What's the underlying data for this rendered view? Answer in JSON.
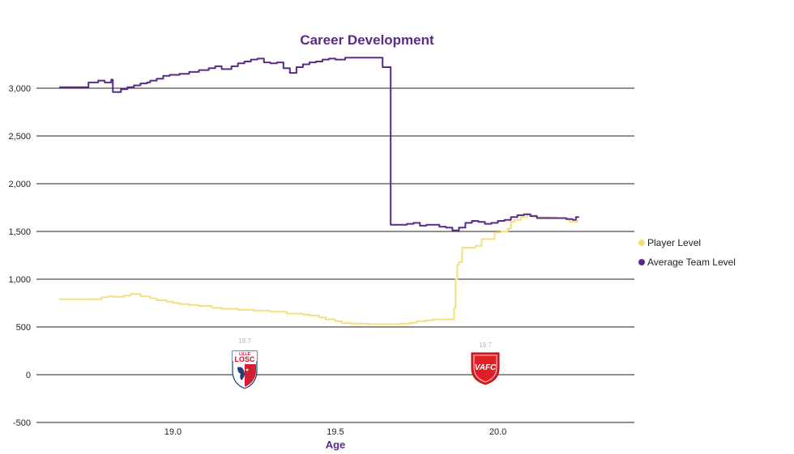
{
  "chart_data": {
    "type": "line",
    "title": "Career Development",
    "xlabel": "Age",
    "ylabel": "",
    "xlim": [
      18.58,
      20.42
    ],
    "ylim": [
      -500,
      3500
    ],
    "yticks": [
      3000,
      2500,
      2000,
      1500,
      1000,
      500,
      0,
      -500
    ],
    "ytick_labels": [
      "3,000",
      "2,500",
      "2,000",
      "1,500",
      "1,000",
      "500",
      "0",
      "-500"
    ],
    "xticks": [
      19.0,
      19.5,
      20.0
    ],
    "xtick_labels": [
      "19.0",
      "19.5",
      "20.0"
    ],
    "grid": "horizontal",
    "legend_position": "right",
    "series": [
      {
        "name": "Player Level",
        "color": "#f3e07c",
        "points": [
          [
            18.65,
            790
          ],
          [
            18.73,
            790
          ],
          [
            18.78,
            810
          ],
          [
            18.8,
            820
          ],
          [
            18.82,
            815
          ],
          [
            18.85,
            830
          ],
          [
            18.87,
            845
          ],
          [
            18.9,
            820
          ],
          [
            18.93,
            800
          ],
          [
            18.95,
            780
          ],
          [
            18.98,
            765
          ],
          [
            19.0,
            750
          ],
          [
            19.02,
            740
          ],
          [
            19.05,
            730
          ],
          [
            19.08,
            720
          ],
          [
            19.12,
            700
          ],
          [
            19.15,
            690
          ],
          [
            19.2,
            680
          ],
          [
            19.25,
            670
          ],
          [
            19.3,
            660
          ],
          [
            19.35,
            640
          ],
          [
            19.4,
            630
          ],
          [
            19.42,
            620
          ],
          [
            19.45,
            600
          ],
          [
            19.47,
            580
          ],
          [
            19.5,
            560
          ],
          [
            19.52,
            540
          ],
          [
            19.55,
            535
          ],
          [
            19.6,
            530
          ],
          [
            19.65,
            530
          ],
          [
            19.7,
            535
          ],
          [
            19.73,
            545
          ],
          [
            19.75,
            560
          ],
          [
            19.78,
            570
          ],
          [
            19.8,
            580
          ],
          [
            19.85,
            580
          ],
          [
            19.865,
            700
          ],
          [
            19.87,
            1000
          ],
          [
            19.875,
            1150
          ],
          [
            19.88,
            1180
          ],
          [
            19.89,
            1330
          ],
          [
            19.93,
            1350
          ],
          [
            19.95,
            1420
          ],
          [
            19.99,
            1490
          ],
          [
            20.01,
            1500
          ],
          [
            20.03,
            1530
          ],
          [
            20.04,
            1600
          ],
          [
            20.05,
            1620
          ],
          [
            20.07,
            1650
          ],
          [
            20.09,
            1670
          ],
          [
            20.12,
            1650
          ],
          [
            20.18,
            1640
          ],
          [
            20.22,
            1600
          ],
          [
            20.245,
            1620
          ]
        ]
      },
      {
        "name": "Average Team Level",
        "color": "#5b2a86",
        "points": [
          [
            18.65,
            3010
          ],
          [
            18.73,
            3010
          ],
          [
            18.74,
            3060
          ],
          [
            18.77,
            3080
          ],
          [
            18.79,
            3060
          ],
          [
            18.81,
            3090
          ],
          [
            18.815,
            2960
          ],
          [
            18.84,
            2990
          ],
          [
            18.86,
            3010
          ],
          [
            18.88,
            3030
          ],
          [
            18.9,
            3050
          ],
          [
            18.92,
            3060
          ],
          [
            18.93,
            3080
          ],
          [
            18.95,
            3100
          ],
          [
            18.97,
            3130
          ],
          [
            18.99,
            3140
          ],
          [
            19.02,
            3150
          ],
          [
            19.05,
            3170
          ],
          [
            19.08,
            3190
          ],
          [
            19.11,
            3210
          ],
          [
            19.13,
            3230
          ],
          [
            19.15,
            3200
          ],
          [
            19.18,
            3230
          ],
          [
            19.2,
            3260
          ],
          [
            19.22,
            3280
          ],
          [
            19.24,
            3300
          ],
          [
            19.26,
            3310
          ],
          [
            19.28,
            3270
          ],
          [
            19.3,
            3260
          ],
          [
            19.32,
            3270
          ],
          [
            19.34,
            3210
          ],
          [
            19.36,
            3160
          ],
          [
            19.38,
            3220
          ],
          [
            19.4,
            3250
          ],
          [
            19.42,
            3270
          ],
          [
            19.44,
            3280
          ],
          [
            19.46,
            3300
          ],
          [
            19.48,
            3310
          ],
          [
            19.5,
            3300
          ],
          [
            19.53,
            3320
          ],
          [
            19.57,
            3320
          ],
          [
            19.6,
            3320
          ],
          [
            19.645,
            3320
          ],
          [
            19.645,
            3220
          ],
          [
            19.665,
            3220
          ],
          [
            19.67,
            1570
          ],
          [
            19.7,
            1570
          ],
          [
            19.72,
            1580
          ],
          [
            19.74,
            1590
          ],
          [
            19.76,
            1560
          ],
          [
            19.78,
            1570
          ],
          [
            19.8,
            1570
          ],
          [
            19.82,
            1550
          ],
          [
            19.84,
            1540
          ],
          [
            19.86,
            1510
          ],
          [
            19.88,
            1540
          ],
          [
            19.9,
            1590
          ],
          [
            19.92,
            1610
          ],
          [
            19.94,
            1600
          ],
          [
            19.96,
            1580
          ],
          [
            19.98,
            1590
          ],
          [
            20.0,
            1610
          ],
          [
            20.02,
            1620
          ],
          [
            20.04,
            1650
          ],
          [
            20.06,
            1670
          ],
          [
            20.08,
            1680
          ],
          [
            20.1,
            1660
          ],
          [
            20.12,
            1640
          ],
          [
            20.15,
            1640
          ],
          [
            20.18,
            1640
          ],
          [
            20.21,
            1630
          ],
          [
            20.23,
            1620
          ],
          [
            20.24,
            1650
          ],
          [
            20.25,
            1650
          ]
        ]
      }
    ],
    "annotations": [
      {
        "club": "LILLE LOSC",
        "age_label": "18.7",
        "x": 19.22
      },
      {
        "club": "VAFC",
        "age_label": "19.7",
        "x": 19.96
      }
    ]
  }
}
